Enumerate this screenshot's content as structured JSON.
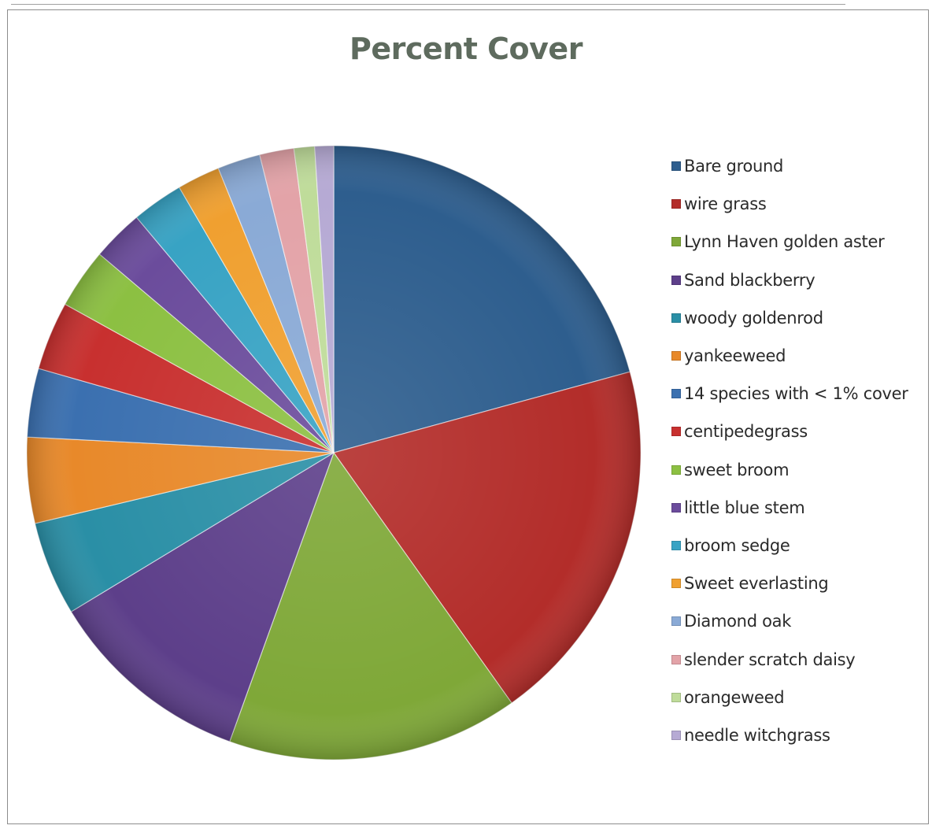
{
  "chart_data": {
    "type": "pie",
    "title": "Percent Cover",
    "legend_position": "right",
    "slices": [
      {
        "label": "Bare ground",
        "value": 23.0,
        "color": "#2e5e8e"
      },
      {
        "label": "wire grass",
        "value": 21.5,
        "color": "#b32d2a"
      },
      {
        "label": "Lynn Haven golden aster",
        "value": 17.0,
        "color": "#7fa838"
      },
      {
        "label": "Sand blackberry",
        "value": 12.0,
        "color": "#5d3f8a"
      },
      {
        "label": "woody goldenrod",
        "value": 5.5,
        "color": "#2a8fa6"
      },
      {
        "label": "yankeeweed",
        "value": 5.0,
        "color": "#e8892a"
      },
      {
        "label": "14 species with < 1% cover",
        "value": 4.0,
        "color": "#3b70b0"
      },
      {
        "label": "centipedegrass",
        "value": 4.0,
        "color": "#c8302f"
      },
      {
        "label": "sweet broom",
        "value": 3.5,
        "color": "#8cc042"
      },
      {
        "label": "little blue stem",
        "value": 3.0,
        "color": "#6b4c9c"
      },
      {
        "label": "broom sedge",
        "value": 3.0,
        "color": "#38a3c4"
      },
      {
        "label": "Sweet everlasting",
        "value": 2.5,
        "color": "#f0a030"
      },
      {
        "label": "Diamond oak",
        "value": 2.5,
        "color": "#8aaad6"
      },
      {
        "label": "slender scratch daisy",
        "value": 2.0,
        "color": "#e3a3a8"
      },
      {
        "label": "orangeweed",
        "value": 1.2,
        "color": "#bfdc9a"
      },
      {
        "label": "needle witchgrass",
        "value": 1.1,
        "color": "#b6aad4"
      }
    ]
  }
}
